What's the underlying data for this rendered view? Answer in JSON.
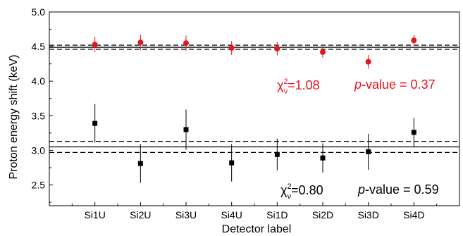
{
  "chart_data": {
    "type": "scatter",
    "title": "",
    "xlabel": "Detector label",
    "ylabel": "Proton energy shift (keV)",
    "categories": [
      "Si1U",
      "Si2U",
      "Si3U",
      "Si4U",
      "Si1D",
      "Si2D",
      "Si3D",
      "Si4D"
    ],
    "ylim": [
      2.2,
      5.0
    ],
    "yticks": [
      "2.5",
      "3.0",
      "3.5",
      "4.0",
      "4.5",
      "5.0"
    ],
    "grid": false,
    "series": [
      {
        "color": "#e8141c",
        "marker": "circle",
        "values": [
          4.53,
          4.56,
          4.55,
          4.48,
          4.47,
          4.42,
          4.28,
          4.59
        ],
        "errors": [
          0.11,
          0.11,
          0.11,
          0.1,
          0.1,
          0.08,
          0.1,
          0.08
        ]
      },
      {
        "color": "#000000",
        "marker": "square",
        "values": [
          3.39,
          2.81,
          3.3,
          2.82,
          2.94,
          2.89,
          2.98,
          3.26
        ],
        "errors": [
          0.28,
          0.28,
          0.29,
          0.27,
          0.23,
          0.21,
          0.26,
          0.21
        ]
      }
    ],
    "reference_lines": [
      {
        "series": 0,
        "mean": 4.49,
        "band": [
          4.46,
          4.52
        ],
        "color": "#000000"
      },
      {
        "series": 1,
        "mean": 3.05,
        "band": [
          2.97,
          3.13
        ],
        "color": "#000000"
      }
    ],
    "annotations": [
      {
        "series": 0,
        "color": "#e8141c",
        "chi_symbol": "χ",
        "chi_sup": "2",
        "chi_sub": "ν",
        "chi_value": "=1.08",
        "p_label": "p",
        "p_value": "-value = 0.37"
      },
      {
        "series": 1,
        "color": "#000000",
        "chi_symbol": "χ",
        "chi_sup": "2",
        "chi_sub": "ν",
        "chi_value": "=0.80",
        "p_label": "p",
        "p_value": "-value = 0.59"
      }
    ]
  }
}
